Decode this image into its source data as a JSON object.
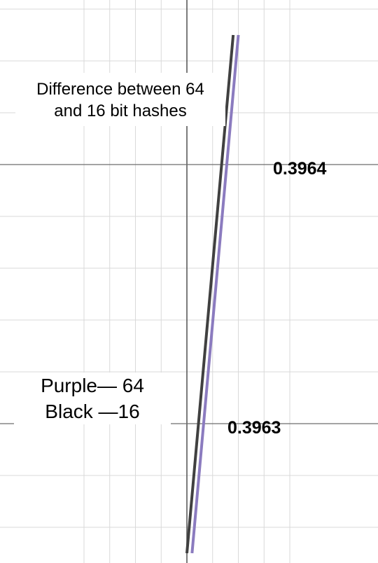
{
  "chart_data": {
    "type": "line",
    "title_line1": "Difference between 64",
    "title_line2": "and 16 bit hashes",
    "xlabel": "",
    "ylabel": "",
    "grid": true,
    "ylim": [
      0.39625,
      0.39645
    ],
    "y_ticks": [
      0.3962,
      0.3963,
      0.3964
    ],
    "y_tick_labels": [
      {
        "value": 0.3964,
        "label": "0.3964"
      },
      {
        "value": 0.3963,
        "label": "0.3963"
      }
    ],
    "legend": {
      "line1": "Purple— 64",
      "line2": "Black —16"
    },
    "series": [
      {
        "name": "64",
        "color": "#8b7bbf",
        "points": [
          {
            "x": 0.1,
            "y": 0.39625
          },
          {
            "x": 1.0,
            "y": 0.39645
          }
        ]
      },
      {
        "name": "16",
        "color": "#404040",
        "points": [
          {
            "x": 0.0,
            "y": 0.39625
          },
          {
            "x": 0.9,
            "y": 0.39645
          }
        ]
      }
    ],
    "x_range": [
      -1.5,
      1.5
    ]
  }
}
